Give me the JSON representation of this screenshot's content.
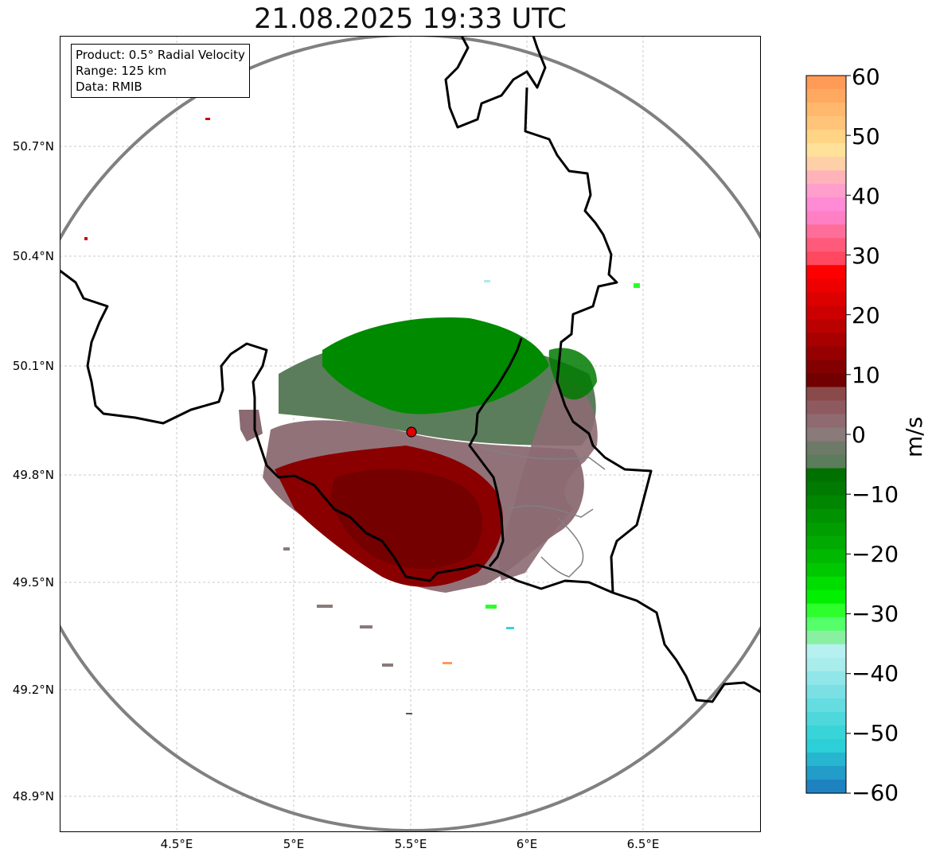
{
  "title": "21.08.2025 19:33 UTC",
  "info": {
    "product": "Product: 0.5° Radial Velocity",
    "range": "Range: 125 km",
    "source": "Data: RMIB"
  },
  "axes": {
    "lat_labels": [
      "50.7°N",
      "50.4°N",
      "50.1°N",
      "49.8°N",
      "49.5°N",
      "49.2°N",
      "48.9°N"
    ],
    "lon_labels": [
      "4.5°E",
      "5°E",
      "5.5°E",
      "6°E",
      "6.5°E"
    ]
  },
  "colorbar": {
    "unit": "m/s",
    "ticks": [
      "60",
      "50",
      "40",
      "30",
      "20",
      "10",
      "0",
      "−10",
      "−20",
      "−30",
      "−40",
      "−50",
      "−60"
    ],
    "colors": [
      "#ff9a57",
      "#ffa860",
      "#ffb86c",
      "#ffc47a",
      "#ffd485",
      "#ffe19a",
      "#ffd0a8",
      "#ffb3b8",
      "#ff9ecc",
      "#ff8ad6",
      "#ff7fc4",
      "#ff6e9a",
      "#ff5a7a",
      "#ff4760",
      "#ff0000",
      "#ee0000",
      "#dd0000",
      "#cc0000",
      "#bb0000",
      "#a80000",
      "#960000",
      "#830000",
      "#720000",
      "#8a4a4a",
      "#8e5a60",
      "#8f6a70",
      "#8a7a7a",
      "#6e7a68",
      "#5b7d5b",
      "#007000",
      "#007a00",
      "#008600",
      "#009200",
      "#009e00",
      "#00aa00",
      "#00b800",
      "#00c800",
      "#00de00",
      "#00f000",
      "#2cff2c",
      "#55ff6a",
      "#88f0a0",
      "#b6f0f0",
      "#a8ecec",
      "#90e6e8",
      "#7ae0e4",
      "#64dce0",
      "#4ed8dc",
      "#38d4d8",
      "#2ccfd8",
      "#26b6d0",
      "#229cc8",
      "#1f82c0"
    ]
  },
  "markers": {
    "radar_site": "radar-site"
  },
  "colors": {
    "range_ring": "#808080",
    "border": "#000000",
    "region_border": "#808080",
    "grid": "#bbbbbb",
    "site_fill": "#e00000"
  }
}
